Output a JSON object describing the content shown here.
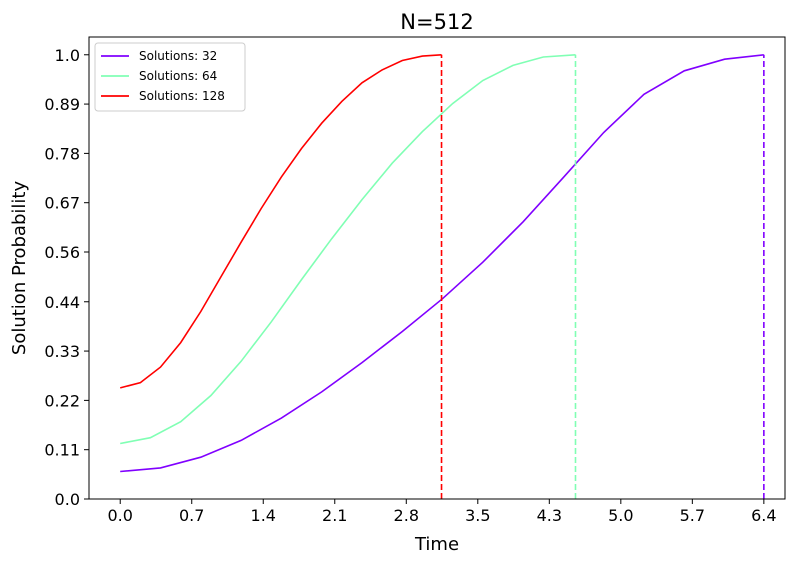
{
  "chart_data": {
    "type": "line",
    "title": "N=512",
    "xlabel": "Time",
    "ylabel": "Solution Probability",
    "xlim": [
      -0.31,
      6.6
    ],
    "ylim": [
      0.0,
      1.04
    ],
    "x_ticks": [
      "0.0",
      "0.7",
      "1.4",
      "2.1",
      "2.8",
      "3.5",
      "4.3",
      "5.0",
      "5.7",
      "6.4"
    ],
    "x_tick_values": [
      0.0,
      0.71,
      1.42,
      2.13,
      2.84,
      3.55,
      4.26,
      4.97,
      5.68,
      6.39
    ],
    "y_ticks": [
      "0.0",
      "0.11",
      "0.22",
      "0.33",
      "0.44",
      "0.56",
      "0.67",
      "0.78",
      "0.89",
      "1.0"
    ],
    "y_tick_values": [
      0.0,
      0.111,
      0.222,
      0.333,
      0.444,
      0.556,
      0.667,
      0.778,
      0.889,
      1.0
    ],
    "grid": false,
    "legend_position": "top-left",
    "series": [
      {
        "name": "Solutions: 32",
        "color": "#8000ff",
        "x": [
          0.0,
          0.4,
          0.8,
          1.2,
          1.6,
          2.0,
          2.4,
          2.8,
          3.2,
          3.6,
          4.0,
          4.4,
          4.8,
          5.2,
          5.6,
          6.0,
          6.39
        ],
        "y": [
          0.062,
          0.07,
          0.094,
          0.132,
          0.182,
          0.241,
          0.307,
          0.377,
          0.451,
          0.533,
          0.624,
          0.724,
          0.825,
          0.911,
          0.964,
          0.99,
          1.0
        ],
        "end_x": 6.39
      },
      {
        "name": "Solutions: 64",
        "color": "#80ffb4",
        "x": [
          0.0,
          0.3,
          0.6,
          0.9,
          1.2,
          1.5,
          1.8,
          2.1,
          2.4,
          2.7,
          3.0,
          3.3,
          3.6,
          3.9,
          4.2,
          4.52
        ],
        "y": [
          0.125,
          0.138,
          0.174,
          0.233,
          0.31,
          0.399,
          0.494,
          0.586,
          0.674,
          0.756,
          0.827,
          0.89,
          0.942,
          0.976,
          0.995,
          1.0
        ],
        "end_x": 4.52
      },
      {
        "name": "Solutions: 128",
        "color": "#ff0000",
        "x": [
          0.0,
          0.2,
          0.4,
          0.6,
          0.8,
          1.0,
          1.2,
          1.4,
          1.6,
          1.8,
          2.0,
          2.2,
          2.4,
          2.6,
          2.8,
          3.0,
          3.19
        ],
        "y": [
          0.25,
          0.262,
          0.297,
          0.352,
          0.422,
          0.5,
          0.578,
          0.654,
          0.725,
          0.789,
          0.846,
          0.895,
          0.937,
          0.966,
          0.987,
          0.997,
          1.0
        ],
        "end_x": 3.19
      }
    ]
  }
}
